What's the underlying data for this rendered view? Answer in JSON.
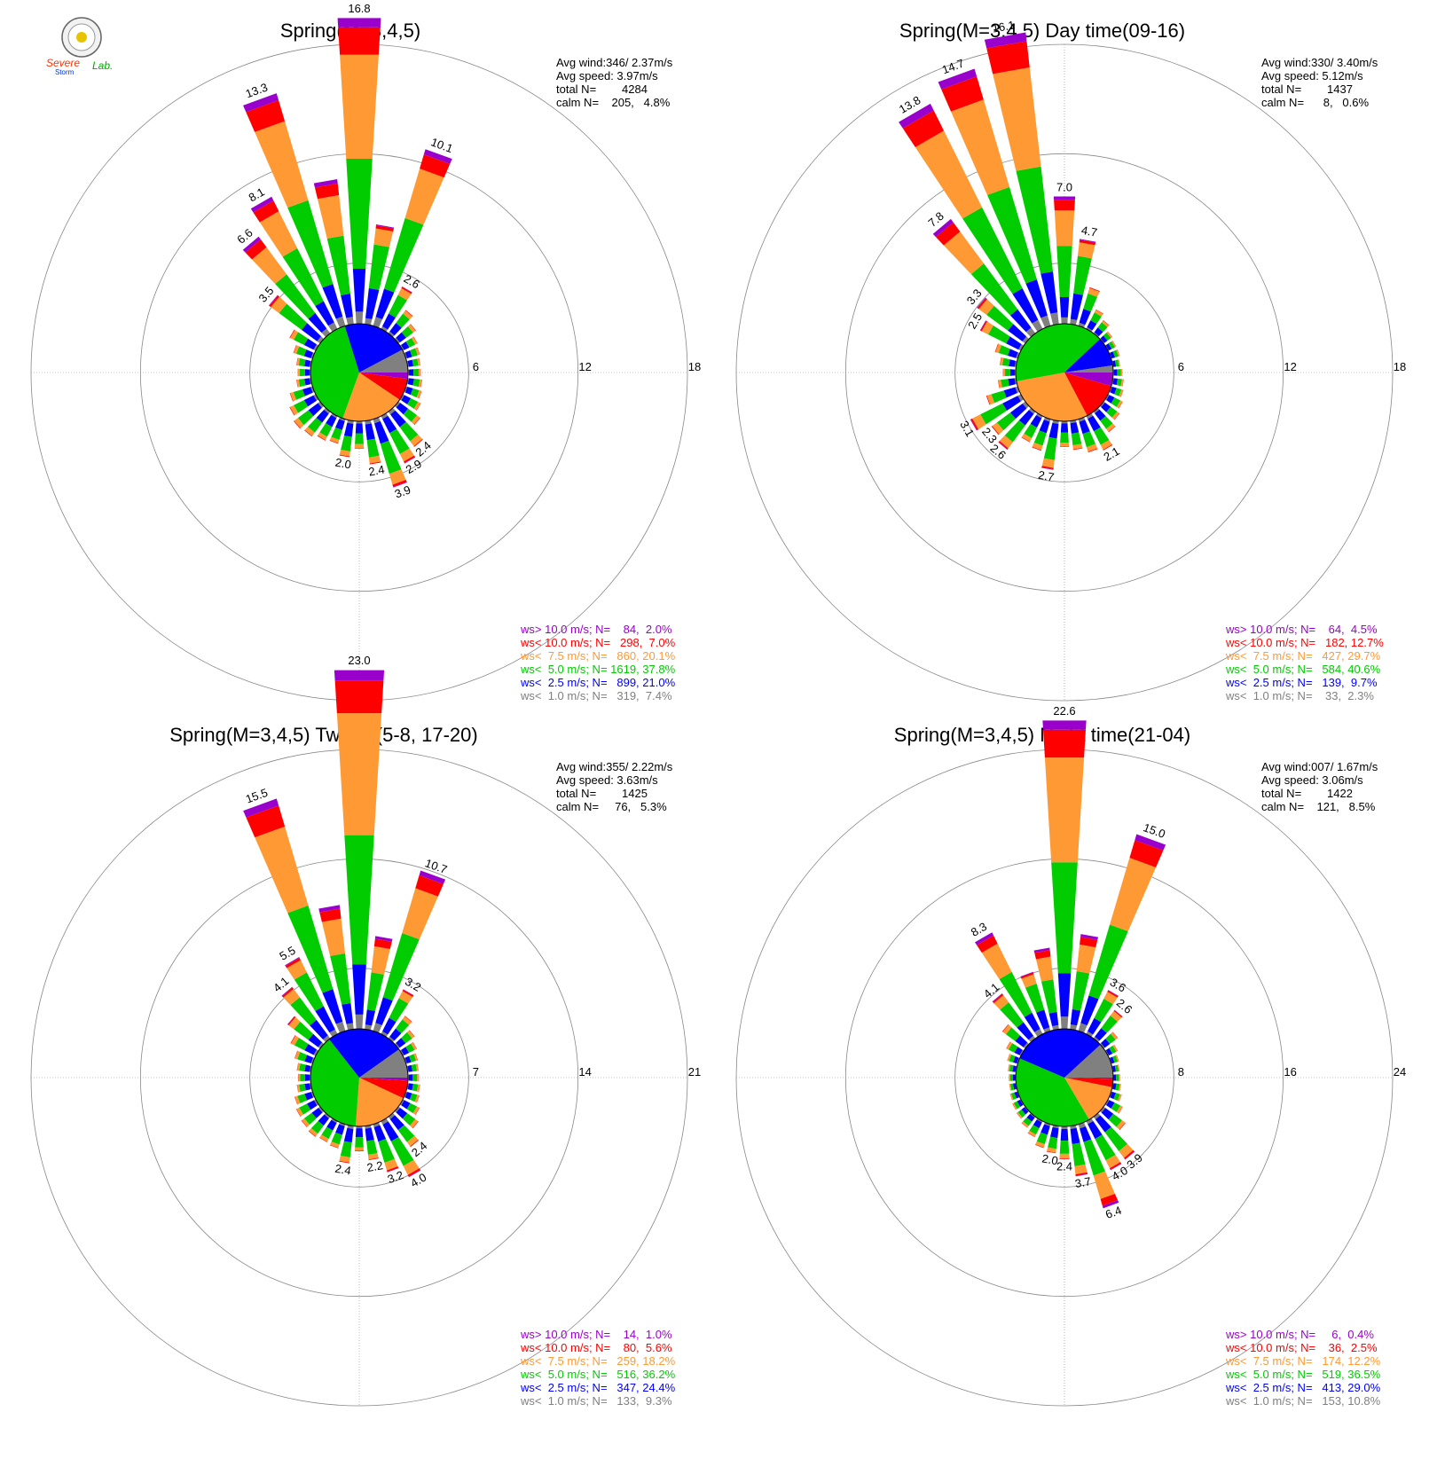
{
  "logo": {
    "text_line1": "Severe",
    "text_line2": "Storm",
    "text_line3": "Lab."
  },
  "colors": {
    "gt10": "#9900cc",
    "lt10": "#ff0000",
    "lt7_5": "#ff9933",
    "lt5": "#00cc00",
    "lt2_5": "#0000ff",
    "lt1": "#808080",
    "grid": "#888888"
  },
  "chart_data": [
    {
      "type": "wind-rose",
      "title": "Spring(M=3,4,5)",
      "stats": [
        "Avg wind:346/ 2.37m/s",
        "Avg speed: 3.97m/s",
        "total N=        4284",
        "calm N=    205,   4.8%"
      ],
      "rlim": [
        0,
        18
      ],
      "rings": [
        6,
        12,
        18
      ],
      "ring_labels": [
        "6",
        "12",
        "18"
      ],
      "grid": true,
      "legend_placement": "bottom-right",
      "legend": [
        {
          "text": "ws> 10.0 m/s; N=    84,  2.0%",
          "color_key": "gt10"
        },
        {
          "text": "ws< 10.0 m/s; N=   298,  7.0%",
          "color_key": "lt10"
        },
        {
          "text": "ws<  7.5 m/s; N=   860, 20.1%",
          "color_key": "lt7_5"
        },
        {
          "text": "ws<  5.0 m/s; N= 1619, 37.8%",
          "color_key": "lt5"
        },
        {
          "text": "ws<  2.5 m/s; N=   899, 21.0%",
          "color_key": "lt2_5"
        },
        {
          "text": "ws<  1.0 m/s; N=   319,  7.4%",
          "color_key": "lt1"
        }
      ],
      "pie": [
        2.0,
        7.0,
        20.1,
        37.8,
        21.0,
        7.4
      ],
      "bars": [
        {
          "dir": 0,
          "total": 16.8,
          "label": "16.8"
        },
        {
          "dir": 10,
          "total": 5.5
        },
        {
          "dir": 20,
          "total": 10.1,
          "label": "10.1"
        },
        {
          "dir": 30,
          "total": 2.6,
          "label": "2.6"
        },
        {
          "dir": 40,
          "total": 1.6
        },
        {
          "dir": 50,
          "total": 1.2
        },
        {
          "dir": 60,
          "total": 0.9
        },
        {
          "dir": 70,
          "total": 0.8
        },
        {
          "dir": 80,
          "total": 0.7
        },
        {
          "dir": 90,
          "total": 0.7
        },
        {
          "dir": 100,
          "total": 0.8
        },
        {
          "dir": 110,
          "total": 0.9
        },
        {
          "dir": 120,
          "total": 1.1
        },
        {
          "dir": 130,
          "total": 1.5
        },
        {
          "dir": 140,
          "total": 2.4,
          "label": "2.4"
        },
        {
          "dir": 150,
          "total": 2.9,
          "label": "2.9"
        },
        {
          "dir": 160,
          "total": 3.9,
          "label": "3.9"
        },
        {
          "dir": 170,
          "total": 2.4,
          "label": "2.4"
        },
        {
          "dir": 180,
          "total": 1.5
        },
        {
          "dir": 190,
          "total": 2.0,
          "label": "2.0"
        },
        {
          "dir": 200,
          "total": 1.4
        },
        {
          "dir": 210,
          "total": 1.5
        },
        {
          "dir": 220,
          "total": 1.7
        },
        {
          "dir": 230,
          "total": 1.8
        },
        {
          "dir": 240,
          "total": 1.6
        },
        {
          "dir": 250,
          "total": 1.3
        },
        {
          "dir": 260,
          "total": 0.8
        },
        {
          "dir": 270,
          "total": 0.7
        },
        {
          "dir": 280,
          "total": 0.8
        },
        {
          "dir": 290,
          "total": 1.1
        },
        {
          "dir": 300,
          "total": 1.6
        },
        {
          "dir": 310,
          "total": 3.5,
          "label": "3.5"
        },
        {
          "dir": 320,
          "total": 6.6,
          "label": "6.6"
        },
        {
          "dir": 330,
          "total": 8.1,
          "label": "8.1"
        },
        {
          "dir": 340,
          "total": 13.3,
          "label": "13.3"
        },
        {
          "dir": 350,
          "total": 8.0
        }
      ]
    },
    {
      "type": "wind-rose",
      "title": "Spring(M=3,4,5) Day time(09-16)",
      "stats": [
        "Avg wind:330/ 3.40m/s",
        "Avg speed: 5.12m/s",
        "total N=        1437",
        "calm N=      8,   0.6%"
      ],
      "rlim": [
        0,
        18
      ],
      "rings": [
        6,
        12,
        18
      ],
      "ring_labels": [
        "6",
        "12",
        "18"
      ],
      "grid": true,
      "legend_placement": "bottom-right",
      "legend": [
        {
          "text": "ws> 10.0 m/s; N=    64,  4.5%",
          "color_key": "gt10"
        },
        {
          "text": "ws< 10.0 m/s; N=   182, 12.7%",
          "color_key": "lt10"
        },
        {
          "text": "ws<  7.5 m/s; N=   427, 29.7%",
          "color_key": "lt7_5"
        },
        {
          "text": "ws<  5.0 m/s; N=   584, 40.6%",
          "color_key": "lt5"
        },
        {
          "text": "ws<  2.5 m/s; N=   139,  9.7%",
          "color_key": "lt2_5"
        },
        {
          "text": "ws<  1.0 m/s; N=    33,  2.3%",
          "color_key": "lt1"
        }
      ],
      "pie": [
        4.5,
        12.7,
        29.7,
        40.6,
        9.7,
        2.3
      ],
      "bars": [
        {
          "dir": 0,
          "total": 7.0,
          "label": "7.0"
        },
        {
          "dir": 10,
          "total": 4.7,
          "label": "4.7"
        },
        {
          "dir": 20,
          "total": 2.2
        },
        {
          "dir": 30,
          "total": 1.2
        },
        {
          "dir": 40,
          "total": 0.9
        },
        {
          "dir": 50,
          "total": 0.6
        },
        {
          "dir": 60,
          "total": 0.5
        },
        {
          "dir": 70,
          "total": 0.5
        },
        {
          "dir": 80,
          "total": 0.4
        },
        {
          "dir": 90,
          "total": 0.5
        },
        {
          "dir": 100,
          "total": 0.6
        },
        {
          "dir": 110,
          "total": 0.7
        },
        {
          "dir": 120,
          "total": 0.9
        },
        {
          "dir": 130,
          "total": 1.1
        },
        {
          "dir": 140,
          "total": 1.4
        },
        {
          "dir": 150,
          "total": 2.1,
          "label": "2.1"
        },
        {
          "dir": 160,
          "total": 1.9
        },
        {
          "dir": 170,
          "total": 1.6
        },
        {
          "dir": 180,
          "total": 1.4
        },
        {
          "dir": 190,
          "total": 2.7,
          "label": "2.7"
        },
        {
          "dir": 200,
          "total": 1.8
        },
        {
          "dir": 210,
          "total": 1.6
        },
        {
          "dir": 220,
          "total": 2.6,
          "label": "2.6"
        },
        {
          "dir": 230,
          "total": 2.3,
          "label": "2.3"
        },
        {
          "dir": 240,
          "total": 3.1,
          "label": "3.1"
        },
        {
          "dir": 250,
          "total": 1.8
        },
        {
          "dir": 260,
          "total": 1.0
        },
        {
          "dir": 270,
          "total": 0.7
        },
        {
          "dir": 280,
          "total": 0.9
        },
        {
          "dir": 290,
          "total": 1.3
        },
        {
          "dir": 300,
          "total": 2.5,
          "label": "2.5"
        },
        {
          "dir": 310,
          "total": 3.3,
          "label": "3.3"
        },
        {
          "dir": 320,
          "total": 7.8,
          "label": "7.8"
        },
        {
          "dir": 330,
          "total": 13.8,
          "label": "13.8"
        },
        {
          "dir": 340,
          "total": 14.7,
          "label": "14.7"
        },
        {
          "dir": 350,
          "total": 16.1,
          "label": "16.1"
        }
      ]
    },
    {
      "type": "wind-rose",
      "title": "Spring(M=3,4,5) Twlight(5-8, 17-20)",
      "stats": [
        "Avg wind:355/ 2.22m/s",
        "Avg speed: 3.63m/s",
        "total N=        1425",
        "calm N=     76,   5.3%"
      ],
      "rlim": [
        0,
        21
      ],
      "rings": [
        7,
        14,
        21
      ],
      "ring_labels": [
        "7",
        "14",
        "21"
      ],
      "grid": true,
      "legend_placement": "bottom-right",
      "legend": [
        {
          "text": "ws> 10.0 m/s; N=    14,  1.0%",
          "color_key": "gt10"
        },
        {
          "text": "ws< 10.0 m/s; N=    80,  5.6%",
          "color_key": "lt10"
        },
        {
          "text": "ws<  7.5 m/s; N=   259, 18.2%",
          "color_key": "lt7_5"
        },
        {
          "text": "ws<  5.0 m/s; N=   516, 36.2%",
          "color_key": "lt5"
        },
        {
          "text": "ws<  2.5 m/s; N=   347, 24.4%",
          "color_key": "lt2_5"
        },
        {
          "text": "ws<  1.0 m/s; N=   133,  9.3%",
          "color_key": "lt1"
        }
      ],
      "pie": [
        1.0,
        5.6,
        18.2,
        36.2,
        24.4,
        9.3
      ],
      "bars": [
        {
          "dir": 0,
          "total": 23.0,
          "label": "23.0"
        },
        {
          "dir": 10,
          "total": 6.0
        },
        {
          "dir": 20,
          "total": 10.7,
          "label": "10.7"
        },
        {
          "dir": 30,
          "total": 3.2,
          "label": "3.2"
        },
        {
          "dir": 40,
          "total": 1.8
        },
        {
          "dir": 50,
          "total": 1.3
        },
        {
          "dir": 60,
          "total": 1.0
        },
        {
          "dir": 70,
          "total": 0.8
        },
        {
          "dir": 80,
          "total": 0.7
        },
        {
          "dir": 90,
          "total": 0.7
        },
        {
          "dir": 100,
          "total": 0.8
        },
        {
          "dir": 110,
          "total": 0.9
        },
        {
          "dir": 120,
          "total": 1.2
        },
        {
          "dir": 130,
          "total": 1.6
        },
        {
          "dir": 140,
          "total": 2.4,
          "label": "2.4"
        },
        {
          "dir": 150,
          "total": 4.0,
          "label": "4.0"
        },
        {
          "dir": 160,
          "total": 3.2,
          "label": "3.2"
        },
        {
          "dir": 170,
          "total": 2.2,
          "label": "2.2"
        },
        {
          "dir": 180,
          "total": 1.6
        },
        {
          "dir": 190,
          "total": 2.4,
          "label": "2.4"
        },
        {
          "dir": 200,
          "total": 1.6
        },
        {
          "dir": 210,
          "total": 1.5
        },
        {
          "dir": 220,
          "total": 1.6
        },
        {
          "dir": 230,
          "total": 1.5
        },
        {
          "dir": 240,
          "total": 1.4
        },
        {
          "dir": 250,
          "total": 1.2
        },
        {
          "dir": 260,
          "total": 0.9
        },
        {
          "dir": 270,
          "total": 0.8
        },
        {
          "dir": 280,
          "total": 0.9
        },
        {
          "dir": 290,
          "total": 1.2
        },
        {
          "dir": 300,
          "total": 1.8
        },
        {
          "dir": 310,
          "total": 2.6
        },
        {
          "dir": 320,
          "total": 4.1,
          "label": "4.1"
        },
        {
          "dir": 330,
          "total": 5.5,
          "label": "5.5"
        },
        {
          "dir": 340,
          "total": 15.5,
          "label": "15.5"
        },
        {
          "dir": 350,
          "total": 8.0
        }
      ]
    },
    {
      "type": "wind-rose",
      "title": "Spring(M=3,4,5) Night time(21-04)",
      "stats": [
        "Avg wind:007/ 1.67m/s",
        "Avg speed: 3.06m/s",
        "total N=        1422",
        "calm N=    121,   8.5%"
      ],
      "rlim": [
        0,
        24
      ],
      "rings": [
        8,
        16,
        24
      ],
      "ring_labels": [
        "8",
        "16",
        "24"
      ],
      "grid": true,
      "legend_placement": "bottom-right",
      "legend": [
        {
          "text": "ws> 10.0 m/s; N=     6,  0.4%",
          "color_key": "gt10"
        },
        {
          "text": "ws< 10.0 m/s; N=    36,  2.5%",
          "color_key": "lt10"
        },
        {
          "text": "ws<  7.5 m/s; N=   174, 12.2%",
          "color_key": "lt7_5"
        },
        {
          "text": "ws<  5.0 m/s; N=   519, 36.5%",
          "color_key": "lt5"
        },
        {
          "text": "ws<  2.5 m/s; N=   413, 29.0%",
          "color_key": "lt2_5"
        },
        {
          "text": "ws<  1.0 m/s; N=   153, 10.8%",
          "color_key": "lt1"
        }
      ],
      "pie": [
        0.4,
        2.5,
        12.2,
        36.5,
        29.0,
        10.8
      ],
      "bars": [
        {
          "dir": 0,
          "total": 22.6,
          "label": "22.6"
        },
        {
          "dir": 10,
          "total": 7.0
        },
        {
          "dir": 20,
          "total": 15.0,
          "label": "15.0"
        },
        {
          "dir": 30,
          "total": 3.6,
          "label": "3.6"
        },
        {
          "dir": 40,
          "total": 2.6,
          "label": "2.6"
        },
        {
          "dir": 50,
          "total": 1.3
        },
        {
          "dir": 60,
          "total": 0.8
        },
        {
          "dir": 70,
          "total": 0.6
        },
        {
          "dir": 80,
          "total": 0.5
        },
        {
          "dir": 90,
          "total": 0.5
        },
        {
          "dir": 100,
          "total": 0.6
        },
        {
          "dir": 110,
          "total": 0.8
        },
        {
          "dir": 120,
          "total": 1.2
        },
        {
          "dir": 130,
          "total": 2.0
        },
        {
          "dir": 140,
          "total": 3.9,
          "label": "3.9"
        },
        {
          "dir": 150,
          "total": 4.0,
          "label": "4.0"
        },
        {
          "dir": 160,
          "total": 6.4,
          "label": "6.4"
        },
        {
          "dir": 170,
          "total": 3.7,
          "label": "3.7"
        },
        {
          "dir": 180,
          "total": 2.4,
          "label": "2.4"
        },
        {
          "dir": 190,
          "total": 2.0,
          "label": "2.0"
        },
        {
          "dir": 200,
          "total": 1.8
        },
        {
          "dir": 210,
          "total": 1.3
        },
        {
          "dir": 220,
          "total": 1.0
        },
        {
          "dir": 230,
          "total": 0.8
        },
        {
          "dir": 240,
          "total": 0.7
        },
        {
          "dir": 250,
          "total": 0.6
        },
        {
          "dir": 260,
          "total": 0.5
        },
        {
          "dir": 270,
          "total": 0.5
        },
        {
          "dir": 280,
          "total": 0.6
        },
        {
          "dir": 290,
          "total": 0.8
        },
        {
          "dir": 300,
          "total": 1.2
        },
        {
          "dir": 310,
          "total": 2.1
        },
        {
          "dir": 320,
          "total": 4.1,
          "label": "4.1"
        },
        {
          "dir": 330,
          "total": 8.3,
          "label": "8.3"
        },
        {
          "dir": 340,
          "total": 4.5
        },
        {
          "dir": 350,
          "total": 6.0
        }
      ]
    }
  ]
}
